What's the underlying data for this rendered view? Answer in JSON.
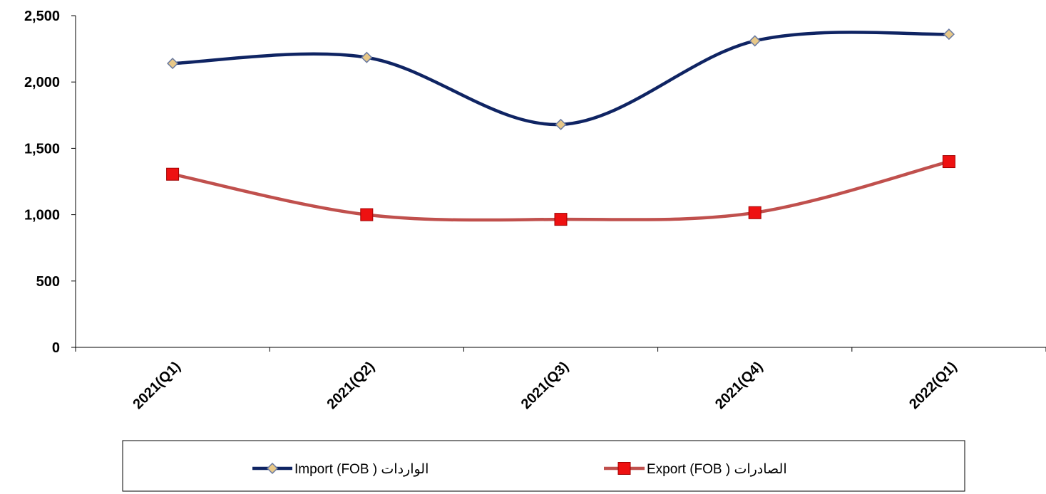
{
  "chart_data": {
    "type": "line",
    "categories": [
      "2021(Q1)",
      "2021(Q2)",
      "2021(Q3)",
      "2021(Q4)",
      "2022(Q1)"
    ],
    "series": [
      {
        "name": "Import (FOB ) الواردات",
        "values": [
          2140,
          2185,
          1680,
          2310,
          2360
        ],
        "color": "#0f2463",
        "marker": "diamond",
        "marker_fill": "#e8c888",
        "marker_stroke": "#6a7aa0"
      },
      {
        "name": "Export (FOB ) الصادرات",
        "values": [
          1305,
          1000,
          965,
          1015,
          1400
        ],
        "color": "#c0504d",
        "marker": "square",
        "marker_fill": "#ee1111",
        "marker_stroke": "#a00000"
      }
    ],
    "yticks": [
      "0",
      "500",
      "1,000",
      "1,500",
      "2,000",
      "2,500"
    ],
    "ylim": [
      0,
      2500
    ],
    "grid": false,
    "smooth": true,
    "legend_position": "bottom"
  }
}
